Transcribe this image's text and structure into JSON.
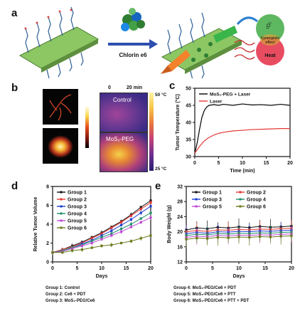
{
  "panels": {
    "a": "a",
    "b": "b",
    "c": "c",
    "d": "d",
    "e": "e"
  },
  "panel_a": {
    "arrow_label": "Chlorin e6",
    "ps_label": "¹O₂",
    "synergy_label": "Synergistic effect",
    "heat_label": "Heat",
    "colors": {
      "nanosheet": "#7ab85a",
      "ce6": "#2e7d32",
      "green_circle": "#4caf50",
      "red_circle": "#e53950",
      "laser_orange": "#f4822a",
      "laser_green": "#39b54a"
    }
  },
  "panel_b": {
    "time_start": "0",
    "time_end": "20 min",
    "control_label": "Control",
    "mos2_label": "MoS₂-PEG",
    "scale_max": "50 °C",
    "scale_min": "25 °C"
  },
  "chart_data": [
    {
      "panel": "c",
      "type": "line",
      "xlabel": "Time (min)",
      "ylabel": "Tumor Temperature (°C)",
      "xlim": [
        0,
        20
      ],
      "ylim": [
        30,
        50
      ],
      "xticks": [
        "0",
        "5",
        "10",
        "15",
        "20"
      ],
      "yticks": [
        "30",
        "35",
        "40",
        "45",
        "50"
      ],
      "legend_position": "top-left",
      "series": [
        {
          "name": "MoS₂-PEG + Laser",
          "color": "#000000",
          "x": [
            0,
            0.5,
            1,
            1.5,
            2,
            2.5,
            3,
            4,
            5,
            6,
            8,
            10,
            12,
            14,
            16,
            18,
            20
          ],
          "y": [
            31,
            34,
            38,
            41.5,
            43.5,
            44.5,
            45,
            45.2,
            45,
            45.3,
            45,
            45.4,
            45.1,
            45.2,
            45,
            45.3,
            45
          ]
        },
        {
          "name": "Laser",
          "color": "#e53935",
          "x": [
            0,
            1,
            2,
            3,
            4,
            5,
            6,
            8,
            10,
            12,
            14,
            16,
            18,
            20
          ],
          "y": [
            31,
            33,
            34.6,
            35.6,
            36.3,
            36.8,
            37.1,
            37.5,
            37.7,
            37.9,
            38,
            38.1,
            38.2,
            38.2
          ]
        }
      ]
    },
    {
      "panel": "d",
      "type": "line",
      "xlabel": "Days",
      "ylabel": "Relative Tumor Volume",
      "xlim": [
        0,
        20
      ],
      "ylim": [
        0,
        8
      ],
      "xticks": [
        "0",
        "5",
        "10",
        "15",
        "20"
      ],
      "yticks": [
        "0",
        "2",
        "4",
        "6",
        "8"
      ],
      "legend_position": "top-left",
      "x": [
        0,
        2,
        4,
        6,
        8,
        10,
        12,
        14,
        16,
        18,
        20
      ],
      "series": [
        {
          "name": "Group 1",
          "color": "#111111",
          "values": [
            1,
            1.3,
            1.7,
            2.1,
            2.6,
            3.1,
            3.7,
            4.3,
            5.0,
            5.8,
            6.5
          ]
        },
        {
          "name": "Group 2",
          "color": "#e53935",
          "values": [
            1,
            1.3,
            1.6,
            2.0,
            2.5,
            3.0,
            3.6,
            4.2,
            4.9,
            5.6,
            6.3
          ]
        },
        {
          "name": "Group 3",
          "color": "#1e3fd1",
          "values": [
            1,
            1.2,
            1.5,
            1.9,
            2.3,
            2.8,
            3.3,
            3.9,
            4.5,
            5.2,
            5.9
          ]
        },
        {
          "name": "Group 4",
          "color": "#1f8f6a",
          "values": [
            1,
            1.2,
            1.5,
            1.8,
            2.2,
            2.6,
            3.0,
            3.5,
            4.0,
            4.6,
            5.2
          ]
        },
        {
          "name": "Group 5",
          "color": "#c04bd6",
          "values": [
            1,
            1.1,
            1.4,
            1.7,
            2.0,
            2.4,
            2.8,
            3.2,
            3.7,
            4.2,
            4.7
          ]
        },
        {
          "name": "Group 6",
          "color": "#6b7a1a",
          "values": [
            1,
            1.0,
            1.2,
            1.3,
            1.5,
            1.7,
            1.8,
            2.0,
            2.2,
            2.5,
            2.8
          ]
        }
      ]
    },
    {
      "panel": "e",
      "type": "line",
      "xlabel": "Days",
      "ylabel": "Body Weight (g)",
      "xlim": [
        0,
        20
      ],
      "ylim": [
        12,
        32
      ],
      "xticks": [
        "0",
        "5",
        "10",
        "15",
        "20"
      ],
      "yticks": [
        "12",
        "16",
        "20",
        "24",
        "28",
        "32"
      ],
      "legend_position": "top",
      "x": [
        0,
        2,
        4,
        6,
        8,
        10,
        12,
        14,
        16,
        18,
        20
      ],
      "series": [
        {
          "name": "Group 1",
          "color": "#111111",
          "values": [
            20.5,
            21,
            20.8,
            21.2,
            21,
            21.3,
            21.1,
            21.4,
            21.2,
            21.3,
            21.5
          ]
        },
        {
          "name": "Group 2",
          "color": "#e53935",
          "values": [
            20,
            20.3,
            20.1,
            20.5,
            20.4,
            20.6,
            20.5,
            20.7,
            20.6,
            20.8,
            20.9
          ]
        },
        {
          "name": "Group 3",
          "color": "#1e3fd1",
          "values": [
            19.5,
            19.8,
            19.6,
            20,
            19.9,
            20.1,
            20,
            20.2,
            20.1,
            20.3,
            20.4
          ]
        },
        {
          "name": "Group 4",
          "color": "#1f8f6a",
          "values": [
            19,
            19.3,
            19.2,
            19.5,
            19.4,
            19.6,
            19.5,
            19.7,
            19.6,
            19.8,
            19.9
          ]
        },
        {
          "name": "Group 5",
          "color": "#c04bd6",
          "values": [
            18.5,
            18.8,
            18.7,
            19,
            18.9,
            19.1,
            19,
            19.2,
            19.1,
            19.3,
            19.4
          ]
        },
        {
          "name": "Group 6",
          "color": "#6b7a1a",
          "values": [
            18,
            18.3,
            18.2,
            18.5,
            18.4,
            18.6,
            18.5,
            18.7,
            18.6,
            18.8,
            18.9
          ]
        }
      ]
    }
  ],
  "captions_d": [
    "Group 1: Control",
    "Group 2: Ce6 + PDT",
    "Group 3: MoS₂-PEG/Ce6"
  ],
  "captions_e": [
    "Group 4: MoS₂-PEG/Ce6 + PDT",
    "Group 5: MoS₂-PEG/Ce6 + PTT",
    "Group 6: MoS₂-PEG/Ce6 + PTT + PDT"
  ]
}
